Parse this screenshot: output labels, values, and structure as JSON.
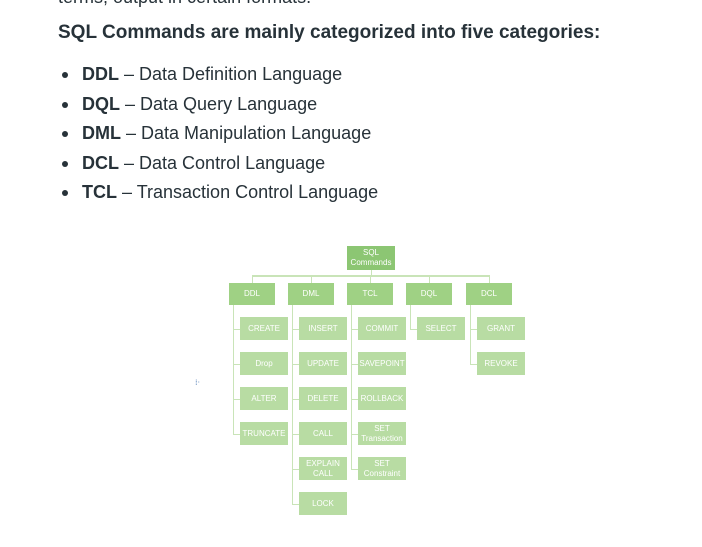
{
  "top_fragment": "terms, output in certain formats.",
  "heading": "SQL Commands are mainly categorized into five categories:",
  "categories": [
    {
      "abbr": "DDL",
      "desc": "– Data Definition Language"
    },
    {
      "abbr": "DQL",
      "desc": "– Data Query Language"
    },
    {
      "abbr": "DML",
      "desc": "– Data Manipulation Language"
    },
    {
      "abbr": "DCL",
      "desc": "– Data Control Language"
    },
    {
      "abbr": "TCL",
      "desc": "– Transaction Control Language"
    }
  ],
  "diagram": {
    "root": "SQL Commands",
    "columns": [
      {
        "name": "DDL",
        "items": [
          "CREATE",
          "Drop",
          "ALTER",
          "TRUNCATE"
        ]
      },
      {
        "name": "DML",
        "items": [
          "INSERT",
          "UPDATE",
          "DELETE",
          "CALL",
          "EXPLAIN CALL",
          "LOCK"
        ]
      },
      {
        "name": "TCL",
        "items": [
          "COMMIT",
          "SAVEPOINT",
          "ROLLBACK",
          "SET Transaction",
          "SET Constraint"
        ]
      },
      {
        "name": "DQL",
        "items": [
          "SELECT"
        ]
      },
      {
        "name": "DCL",
        "items": [
          "GRANT",
          "REVOKE"
        ]
      }
    ],
    "colors": {
      "root": "#8cc673",
      "category": "#9fd184",
      "leaf": "#b8dca3",
      "connector": "#c9e4b8"
    },
    "move_handle_icon": "four-dots-icon"
  }
}
